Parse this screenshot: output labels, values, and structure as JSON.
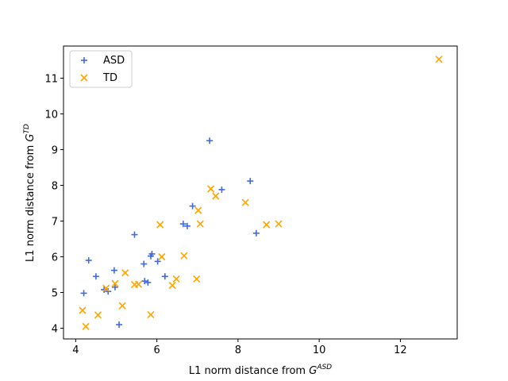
{
  "chart_data": {
    "type": "scatter",
    "xlabel_prefix": "L1 norm distance from ",
    "xlabel_symbol": "G",
    "xlabel_sup": "ASD",
    "ylabel_prefix": "L1 norm distance from ",
    "ylabel_symbol": "G",
    "ylabel_sup": "TD",
    "xlim": [
      3.7,
      13.4
    ],
    "ylim": [
      3.7,
      11.9
    ],
    "xticks": [
      4,
      6,
      8,
      10,
      12
    ],
    "yticks": [
      4,
      5,
      6,
      7,
      8,
      9,
      10,
      11
    ],
    "grid": false,
    "legend_position": "top-left",
    "series": [
      {
        "name": "ASD",
        "marker": "plus",
        "color": "#4169e1",
        "points": [
          [
            4.2,
            4.98
          ],
          [
            4.32,
            5.9
          ],
          [
            4.5,
            5.45
          ],
          [
            4.7,
            5.08
          ],
          [
            4.8,
            5.03
          ],
          [
            4.95,
            5.62
          ],
          [
            4.97,
            5.15
          ],
          [
            5.07,
            4.1
          ],
          [
            5.45,
            6.62
          ],
          [
            5.68,
            5.8
          ],
          [
            5.7,
            5.32
          ],
          [
            5.78,
            5.28
          ],
          [
            5.85,
            6.02
          ],
          [
            5.88,
            6.08
          ],
          [
            6.02,
            5.87
          ],
          [
            6.2,
            5.45
          ],
          [
            6.65,
            6.92
          ],
          [
            6.75,
            6.86
          ],
          [
            6.88,
            7.42
          ],
          [
            7.3,
            9.25
          ],
          [
            7.6,
            7.88
          ],
          [
            8.3,
            8.12
          ],
          [
            8.45,
            6.66
          ]
        ]
      },
      {
        "name": "TD",
        "marker": "x",
        "color": "#ffa500",
        "points": [
          [
            4.17,
            4.5
          ],
          [
            4.25,
            4.05
          ],
          [
            4.55,
            4.37
          ],
          [
            4.75,
            5.12
          ],
          [
            4.97,
            5.25
          ],
          [
            5.15,
            4.63
          ],
          [
            5.22,
            5.55
          ],
          [
            5.45,
            5.22
          ],
          [
            5.55,
            5.23
          ],
          [
            5.85,
            4.38
          ],
          [
            6.08,
            6.9
          ],
          [
            6.12,
            6.0
          ],
          [
            6.38,
            5.2
          ],
          [
            6.48,
            5.38
          ],
          [
            6.67,
            6.03
          ],
          [
            6.98,
            5.38
          ],
          [
            7.02,
            7.3
          ],
          [
            7.07,
            6.92
          ],
          [
            7.33,
            7.9
          ],
          [
            7.45,
            7.7
          ],
          [
            8.18,
            7.52
          ],
          [
            8.7,
            6.9
          ],
          [
            9.0,
            6.92
          ],
          [
            12.95,
            11.53
          ]
        ]
      }
    ]
  }
}
